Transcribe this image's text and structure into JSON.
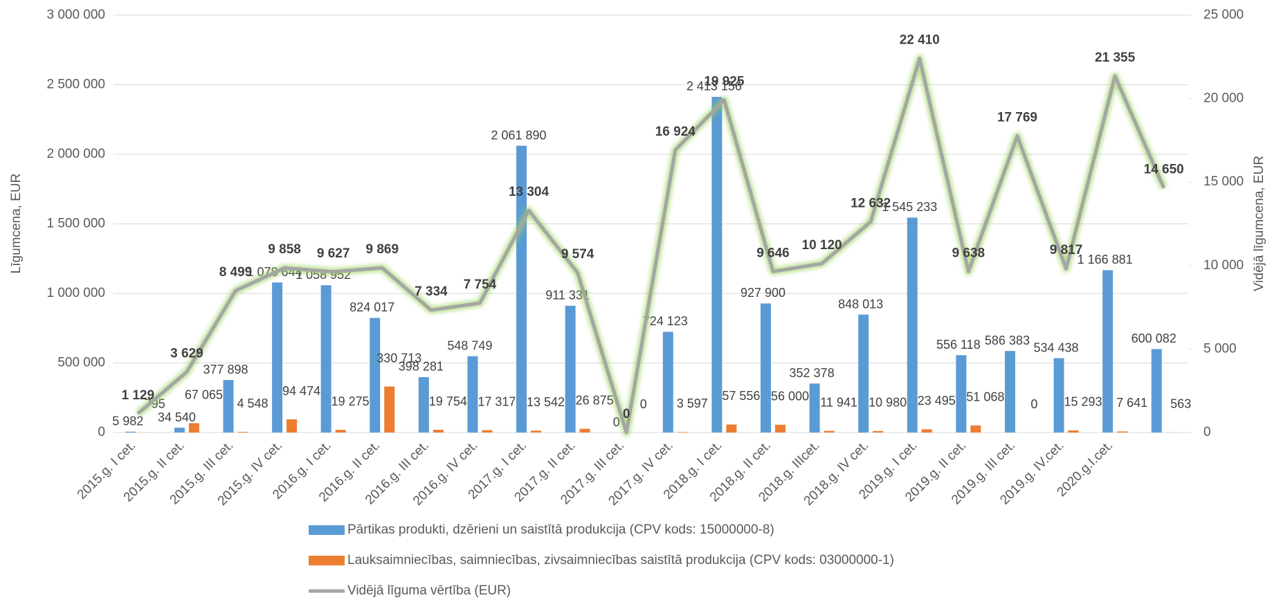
{
  "chart_data": {
    "type": "bar",
    "categories": [
      "2015.g. I cet.",
      "2015.g. II cet.",
      "2015.g. III cet.",
      "2015.g. IV cet.",
      "2016.g. I cet.",
      "2016.g. II cet.",
      "2016.g. III cet.",
      "2016.g. IV cet.",
      "2017.g. I cet.",
      "2017.g. II cet.",
      "2017.g. III cet.",
      "2017.g. IV cet.",
      "2018.g. I cet.",
      "2018.g. II cet.",
      "2018.g. IIIcet.",
      "2018.g. IV cet.",
      "2019.g. I cet.",
      "2019.g. II cet.",
      "2019.g. III cet.",
      "2019.g. IV.cet.",
      "2020.g.I.cet.",
      null
    ],
    "y_label": "Līgumcena, EUR",
    "y2_label": "Vidējā līgumcena, EUR",
    "ylim": [
      0,
      3000000
    ],
    "yticks": [
      0,
      {
        "value": 500000,
        "label": "500 000"
      },
      {
        "value": 1000000,
        "label": "1 000 000"
      },
      {
        "value": 1500000,
        "label": "1 500 000"
      },
      {
        "value": 2000000,
        "label": "2 000 000"
      },
      {
        "value": 2500000,
        "label": "2 500 000"
      },
      {
        "value": 3000000,
        "label": "3 000 000"
      }
    ],
    "y2lim": [
      0,
      25000
    ],
    "y2ticks": [
      0,
      {
        "value": 5000,
        "label": "5 000"
      },
      {
        "value": 10000,
        "label": "10 000"
      },
      {
        "value": 15000,
        "label": "15 000"
      },
      {
        "value": 20000,
        "label": "20 000"
      },
      {
        "value": 25000,
        "label": "25 000"
      }
    ],
    "grid": true,
    "legend": "bottom",
    "series": [
      {
        "name": "Pārtikas produkti, dzērieni un saistītā produkcija (CPV kods: 15000000-8)",
        "type": "bar",
        "color": "#5b9bd5",
        "values": [
          5982,
          34540,
          377898,
          1078644,
          1058952,
          824017,
          398281,
          548749,
          2061890,
          911331,
          0,
          724123,
          2413156,
          927900,
          352378,
          848013,
          1545233,
          556118,
          586383,
          534438,
          1166881,
          600082
        ],
        "value_labels": [
          "5 982",
          "34 540",
          "377 898",
          "1 078 644",
          "1 058 952",
          "824 017",
          "398 281",
          "548 749",
          "2 061 890",
          "911 331",
          "0",
          "724 123",
          "2 413 156",
          "927 900",
          "352 378",
          "848 013",
          "1 545 233",
          "556 118",
          "586 383",
          "534 438",
          "1 166 881",
          "600 082"
        ]
      },
      {
        "name": "Lauksaimniecības, saimniecības, zivsaimniecības saistītā produkcija (CPV kods: 03000000-1)",
        "type": "bar",
        "color": "#ed7d31",
        "values": [
          795,
          67065,
          4548,
          94474,
          19275,
          330713,
          19754,
          17317,
          13542,
          26875,
          0,
          3597,
          57556,
          56000,
          11941,
          10980,
          23495,
          51068,
          0,
          15293,
          7641,
          563
        ],
        "value_labels": [
          "795",
          "67 065",
          "4 548",
          "94 474",
          "19 275",
          "330 713",
          "19 754",
          "17 317",
          "13 542",
          "26 875",
          "0",
          "3 597",
          "57 556",
          "56 000",
          "11 941",
          "10 980",
          "23 495",
          "51 068",
          "0",
          "15 293",
          "7 641",
          "563"
        ]
      },
      {
        "name": "Vidējā līguma vērtība (EUR)",
        "type": "line",
        "axis": "y2",
        "color": "#a5a5a5",
        "values": [
          1129,
          3629,
          8499,
          9858,
          9627,
          9869,
          7334,
          7754,
          13304,
          9574,
          0,
          16924,
          19925,
          9646,
          10120,
          12632,
          22410,
          9638,
          17769,
          9817,
          21355,
          14650
        ],
        "value_labels": [
          "1 129",
          "3 629",
          "8 499",
          "9 858",
          "9 627",
          "9 869",
          "7 334",
          "7 754",
          "13 304",
          "9 574",
          "0",
          "16 924",
          "19 925",
          "9 646",
          "10 120",
          "12 632",
          "22 410",
          "9 638",
          "17 769",
          "9 817",
          "21 355",
          "14 650"
        ]
      }
    ]
  }
}
